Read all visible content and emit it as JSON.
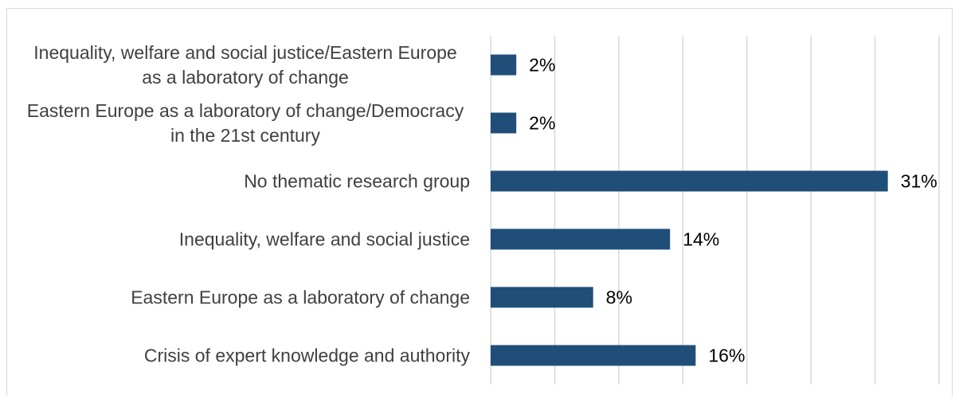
{
  "chart_data": {
    "type": "bar",
    "orientation": "horizontal",
    "categories": [
      [
        "Inequality, welfare and social justice/Eastern Europe",
        "as a laboratory of change"
      ],
      [
        "Eastern Europe as a laboratory of change/Democracy",
        "in the 21st century"
      ],
      [
        "No thematic research group"
      ],
      [
        "Inequality, welfare and social justice"
      ],
      [
        "Eastern Europe as a laboratory of change"
      ],
      [
        "Crisis of expert knowledge and authority"
      ]
    ],
    "values": [
      2,
      2,
      31,
      14,
      8,
      16
    ],
    "value_labels": [
      "2%",
      "2%",
      "31%",
      "14%",
      "8%",
      "16%"
    ],
    "unit": "%",
    "xlim": [
      0,
      35
    ],
    "grid": true,
    "bar_color": "#1f4e79",
    "title": "",
    "xlabel": "",
    "ylabel": ""
  }
}
